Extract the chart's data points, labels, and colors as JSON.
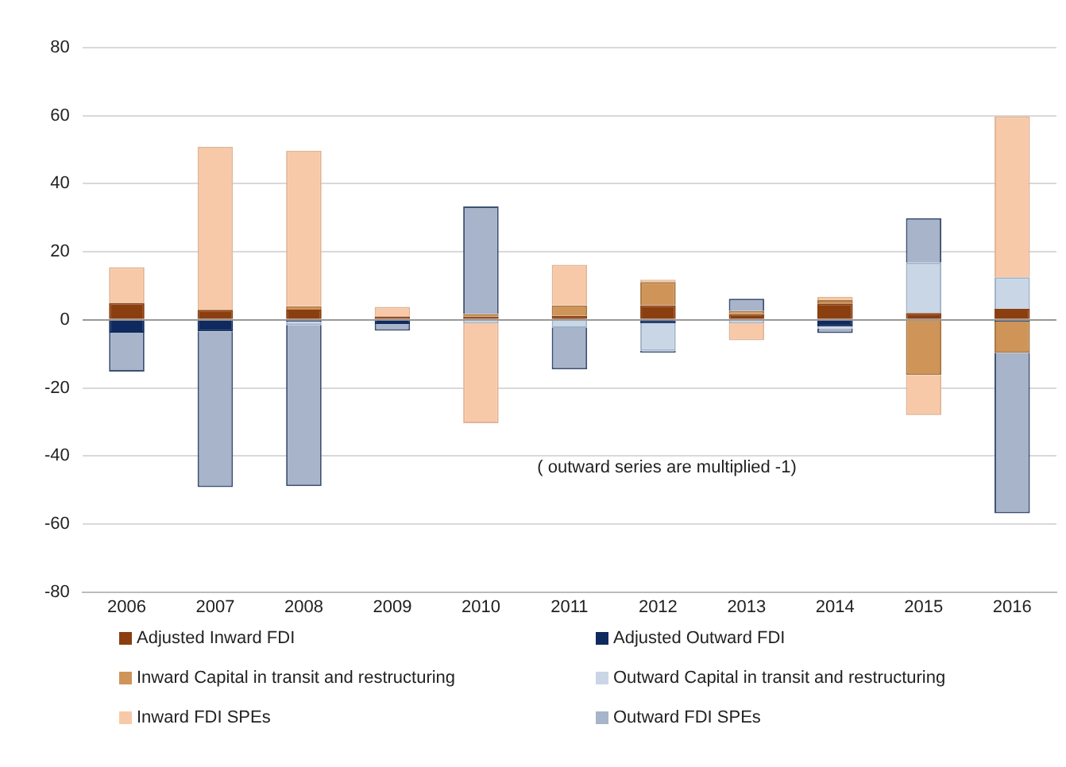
{
  "chart_data": {
    "type": "bar",
    "stacked": true,
    "categories": [
      "2006",
      "2007",
      "2008",
      "2009",
      "2010",
      "2011",
      "2012",
      "2013",
      "2014",
      "2015",
      "2016"
    ],
    "ylim": [
      -80,
      80
    ],
    "yticks": [
      -80,
      -60,
      -40,
      -20,
      0,
      20,
      40,
      60,
      80
    ],
    "grid": "y",
    "legend": "bottom",
    "annotations": [
      "( outward series are multiplied -1)"
    ],
    "series": [
      {
        "name": "Adjusted Inward FDI",
        "color": "#8b3e0f",
        "values": [
          5,
          2.9,
          3,
          1,
          1,
          1.2,
          4.3,
          1.7,
          4.8,
          2,
          3.2
        ]
      },
      {
        "name": "Adjusted Outward FDI",
        "color": "#0f2a5e",
        "values": [
          -3.8,
          -3.4,
          -0.5,
          -1.2,
          null,
          null,
          -1,
          null,
          -2,
          null,
          -0.5
        ]
      },
      {
        "name": "Inward Capital in transit and restructuring",
        "color": "#cf9457",
        "values": [
          null,
          null,
          1,
          null,
          0.7,
          3,
          6.8,
          0.9,
          1,
          -16.2,
          -9.2
        ]
      },
      {
        "name": "Outward Capital in transit and restructuring",
        "color": "#c9d6e6",
        "values": [
          null,
          null,
          -1,
          null,
          -1,
          -2.4,
          -8.1,
          -1,
          -0.5,
          14.8,
          9.3
        ]
      },
      {
        "name": "Inward FDI SPEs",
        "color": "#f8c9a8",
        "values": [
          10.5,
          48,
          45.7,
          2.8,
          -29.4,
          12,
          0.7,
          -5,
          1,
          -11.8,
          47.3
        ]
      },
      {
        "name": "Outward FDI SPEs",
        "color": "#a7b4c9",
        "values": [
          -11.4,
          -45.8,
          -47.4,
          -2,
          31.6,
          -12.2,
          -0.6,
          3.6,
          -1.4,
          13.1,
          -47.2
        ]
      }
    ]
  }
}
